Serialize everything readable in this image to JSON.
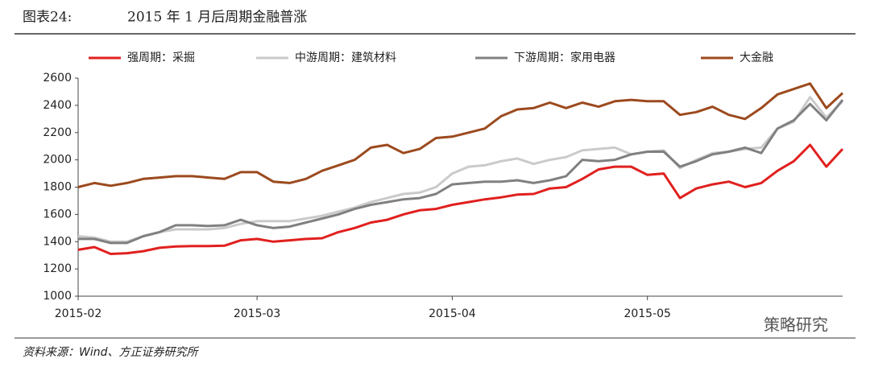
{
  "figure_label": "图表24:",
  "source": "资料来源：Wind、方正证券研究所",
  "watermark": "策略研究",
  "chart_data": {
    "type": "line",
    "title": "2015 年 1 月后周期金融普涨",
    "categories": [
      "2015-02",
      null,
      null,
      null,
      null,
      null,
      null,
      null,
      null,
      null,
      null,
      "2015-03",
      null,
      null,
      null,
      null,
      null,
      null,
      null,
      null,
      null,
      null,
      null,
      "2015-04",
      null,
      null,
      null,
      null,
      null,
      null,
      null,
      null,
      null,
      null,
      null,
      "2015-05",
      null,
      null,
      null,
      null,
      null,
      null,
      null,
      null,
      null,
      null,
      null,
      null
    ],
    "series": [
      {
        "name": "强周期：采掘",
        "color": "#e0201e",
        "values": [
          1340,
          1360,
          1310,
          1315,
          1330,
          1355,
          1365,
          1368,
          1368,
          1370,
          1410,
          1420,
          1400,
          1410,
          1420,
          1425,
          1470,
          1500,
          1540,
          1560,
          1600,
          1630,
          1640,
          1670,
          1690,
          1710,
          1725,
          1745,
          1750,
          1790,
          1800,
          1860,
          1930,
          1950,
          1950,
          1890,
          1900,
          1720,
          1790,
          1820,
          1840,
          1800,
          1830,
          1920,
          1990,
          2110,
          1950,
          2080
        ]
      },
      {
        "name": "中游周期：建筑材料",
        "color": "#cacaca",
        "values": [
          1440,
          1430,
          1400,
          1400,
          1440,
          1470,
          1490,
          1490,
          1490,
          1500,
          1530,
          1550,
          1550,
          1550,
          1570,
          1590,
          1620,
          1650,
          1690,
          1720,
          1750,
          1760,
          1800,
          1900,
          1950,
          1960,
          1990,
          2010,
          1970,
          2000,
          2020,
          2070,
          2080,
          2090,
          2040,
          2060,
          2070,
          1940,
          2000,
          2050,
          2060,
          2080,
          2090,
          2230,
          2280,
          2460,
          2310,
          2430
        ]
      },
      {
        "name": "下游周期：家用电器",
        "color": "#808080",
        "values": [
          1420,
          1420,
          1390,
          1390,
          1440,
          1470,
          1520,
          1520,
          1515,
          1520,
          1560,
          1520,
          1500,
          1510,
          1540,
          1570,
          1600,
          1640,
          1670,
          1690,
          1710,
          1720,
          1750,
          1820,
          1830,
          1840,
          1840,
          1850,
          1830,
          1850,
          1880,
          2000,
          1990,
          2000,
          2040,
          2060,
          2060,
          1950,
          1990,
          2040,
          2060,
          2090,
          2050,
          2230,
          2290,
          2410,
          2290,
          2440
        ]
      },
      {
        "name": "大金融",
        "color": "#9c4a1e",
        "values": [
          1800,
          1830,
          1810,
          1830,
          1860,
          1870,
          1880,
          1880,
          1870,
          1860,
          1910,
          1910,
          1840,
          1830,
          1860,
          1920,
          1960,
          2000,
          2090,
          2110,
          2050,
          2080,
          2160,
          2170,
          2200,
          2230,
          2320,
          2370,
          2380,
          2420,
          2380,
          2420,
          2390,
          2430,
          2440,
          2430,
          2430,
          2330,
          2350,
          2390,
          2330,
          2300,
          2380,
          2480,
          2520,
          2560,
          2380,
          2490
        ]
      }
    ],
    "ylim": [
      1000,
      2600
    ],
    "yticks": [
      1000,
      1200,
      1400,
      1600,
      1800,
      2000,
      2200,
      2400,
      2600
    ],
    "grid": false,
    "legend": "top"
  }
}
